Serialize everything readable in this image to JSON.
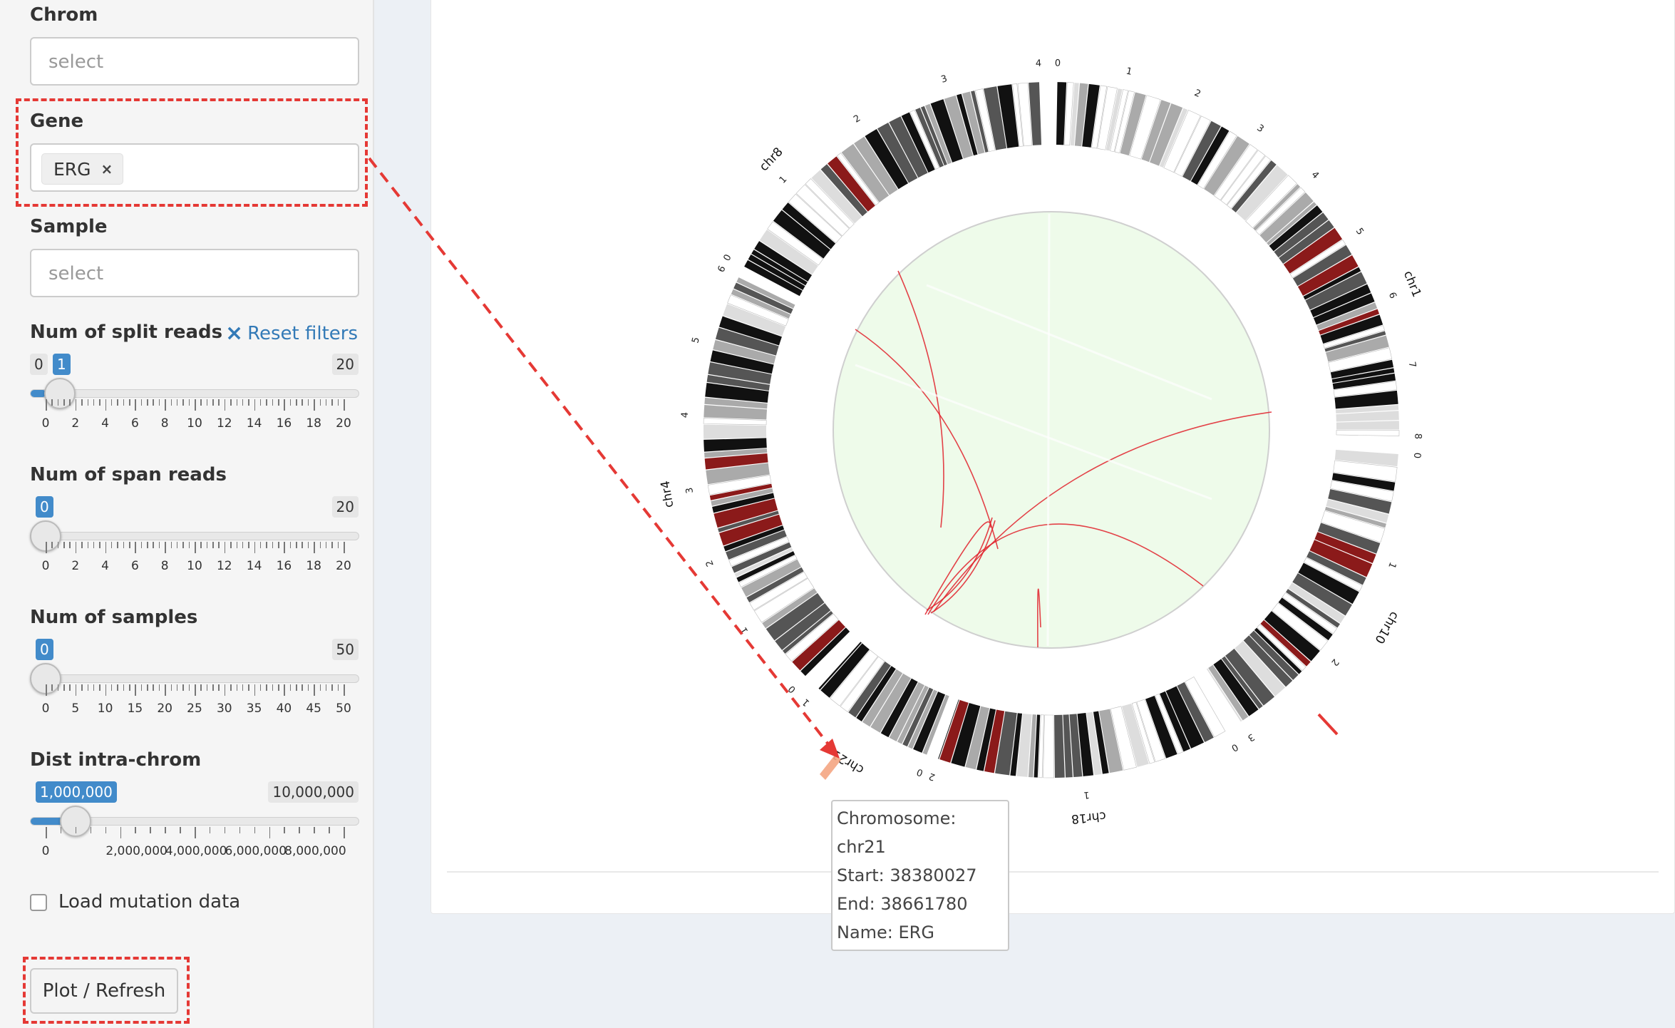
{
  "filters": {
    "chrom": {
      "label": "Chrom",
      "placeholder": "select"
    },
    "gene": {
      "label": "Gene",
      "tags": [
        "ERG"
      ],
      "remove_glyph": "×"
    },
    "sample": {
      "label": "Sample",
      "placeholder": "select"
    },
    "reset_label": "Reset filters",
    "reset_icon": "×",
    "split_reads": {
      "label": "Num of split reads",
      "min": 0,
      "max": 20,
      "value": 1,
      "min_text": "0",
      "max_text": "20",
      "value_text": "1",
      "ticks": [
        "0",
        "2",
        "4",
        "6",
        "8",
        "10",
        "12",
        "14",
        "16",
        "18",
        "20"
      ]
    },
    "span_reads": {
      "label": "Num of span reads",
      "min": 0,
      "max": 20,
      "value": 0,
      "max_text": "20",
      "value_text": "0",
      "ticks": [
        "0",
        "2",
        "4",
        "6",
        "8",
        "10",
        "12",
        "14",
        "16",
        "18",
        "20"
      ]
    },
    "samples": {
      "label": "Num of samples",
      "min": 0,
      "max": 50,
      "value": 0,
      "max_text": "50",
      "value_text": "0",
      "ticks": [
        "0",
        "5",
        "10",
        "15",
        "20",
        "25",
        "30",
        "35",
        "40",
        "45",
        "50"
      ]
    },
    "dist": {
      "label": "Dist intra-chrom",
      "min": 0,
      "max": 10000000,
      "value": 1000000,
      "max_text": "10,000,000",
      "value_text": "1,000,000",
      "ticks": [
        "0",
        "2,000,000",
        "4,000,000",
        "6,000,000",
        "8,000,000"
      ]
    },
    "mutation_label": "Load mutation data",
    "plot_button": "Plot / Refresh"
  },
  "circos": {
    "chromosomes": [
      {
        "name": "chr1",
        "ticks": [
          "0",
          "1",
          "2",
          "3",
          "4",
          "5",
          "6",
          "7",
          "8"
        ]
      },
      {
        "name": "chr10",
        "ticks": [
          "0",
          "1",
          "2",
          "3"
        ]
      },
      {
        "name": "chr18",
        "ticks": [
          "0",
          "1",
          "2"
        ]
      },
      {
        "name": "chr21",
        "ticks": [
          "0",
          "1"
        ]
      },
      {
        "name": "chr4",
        "ticks": [
          "0",
          "1",
          "2",
          "3",
          "4",
          "5",
          "6"
        ]
      },
      {
        "name": "chr8",
        "ticks": [
          "0",
          "1",
          "2",
          "3",
          "4"
        ]
      }
    ],
    "colors": {
      "background": "#eefbea",
      "link": "#e0202a",
      "band_dark": "#111111",
      "band_mid": "#555555",
      "band_light": "#aaaaaa",
      "centromere": "#8b1a1a"
    }
  },
  "tooltip": {
    "chromosome": "Chromosome: chr21",
    "start": "Start: 38380027",
    "end": "End: 38661780",
    "name": "Name: ERG"
  }
}
